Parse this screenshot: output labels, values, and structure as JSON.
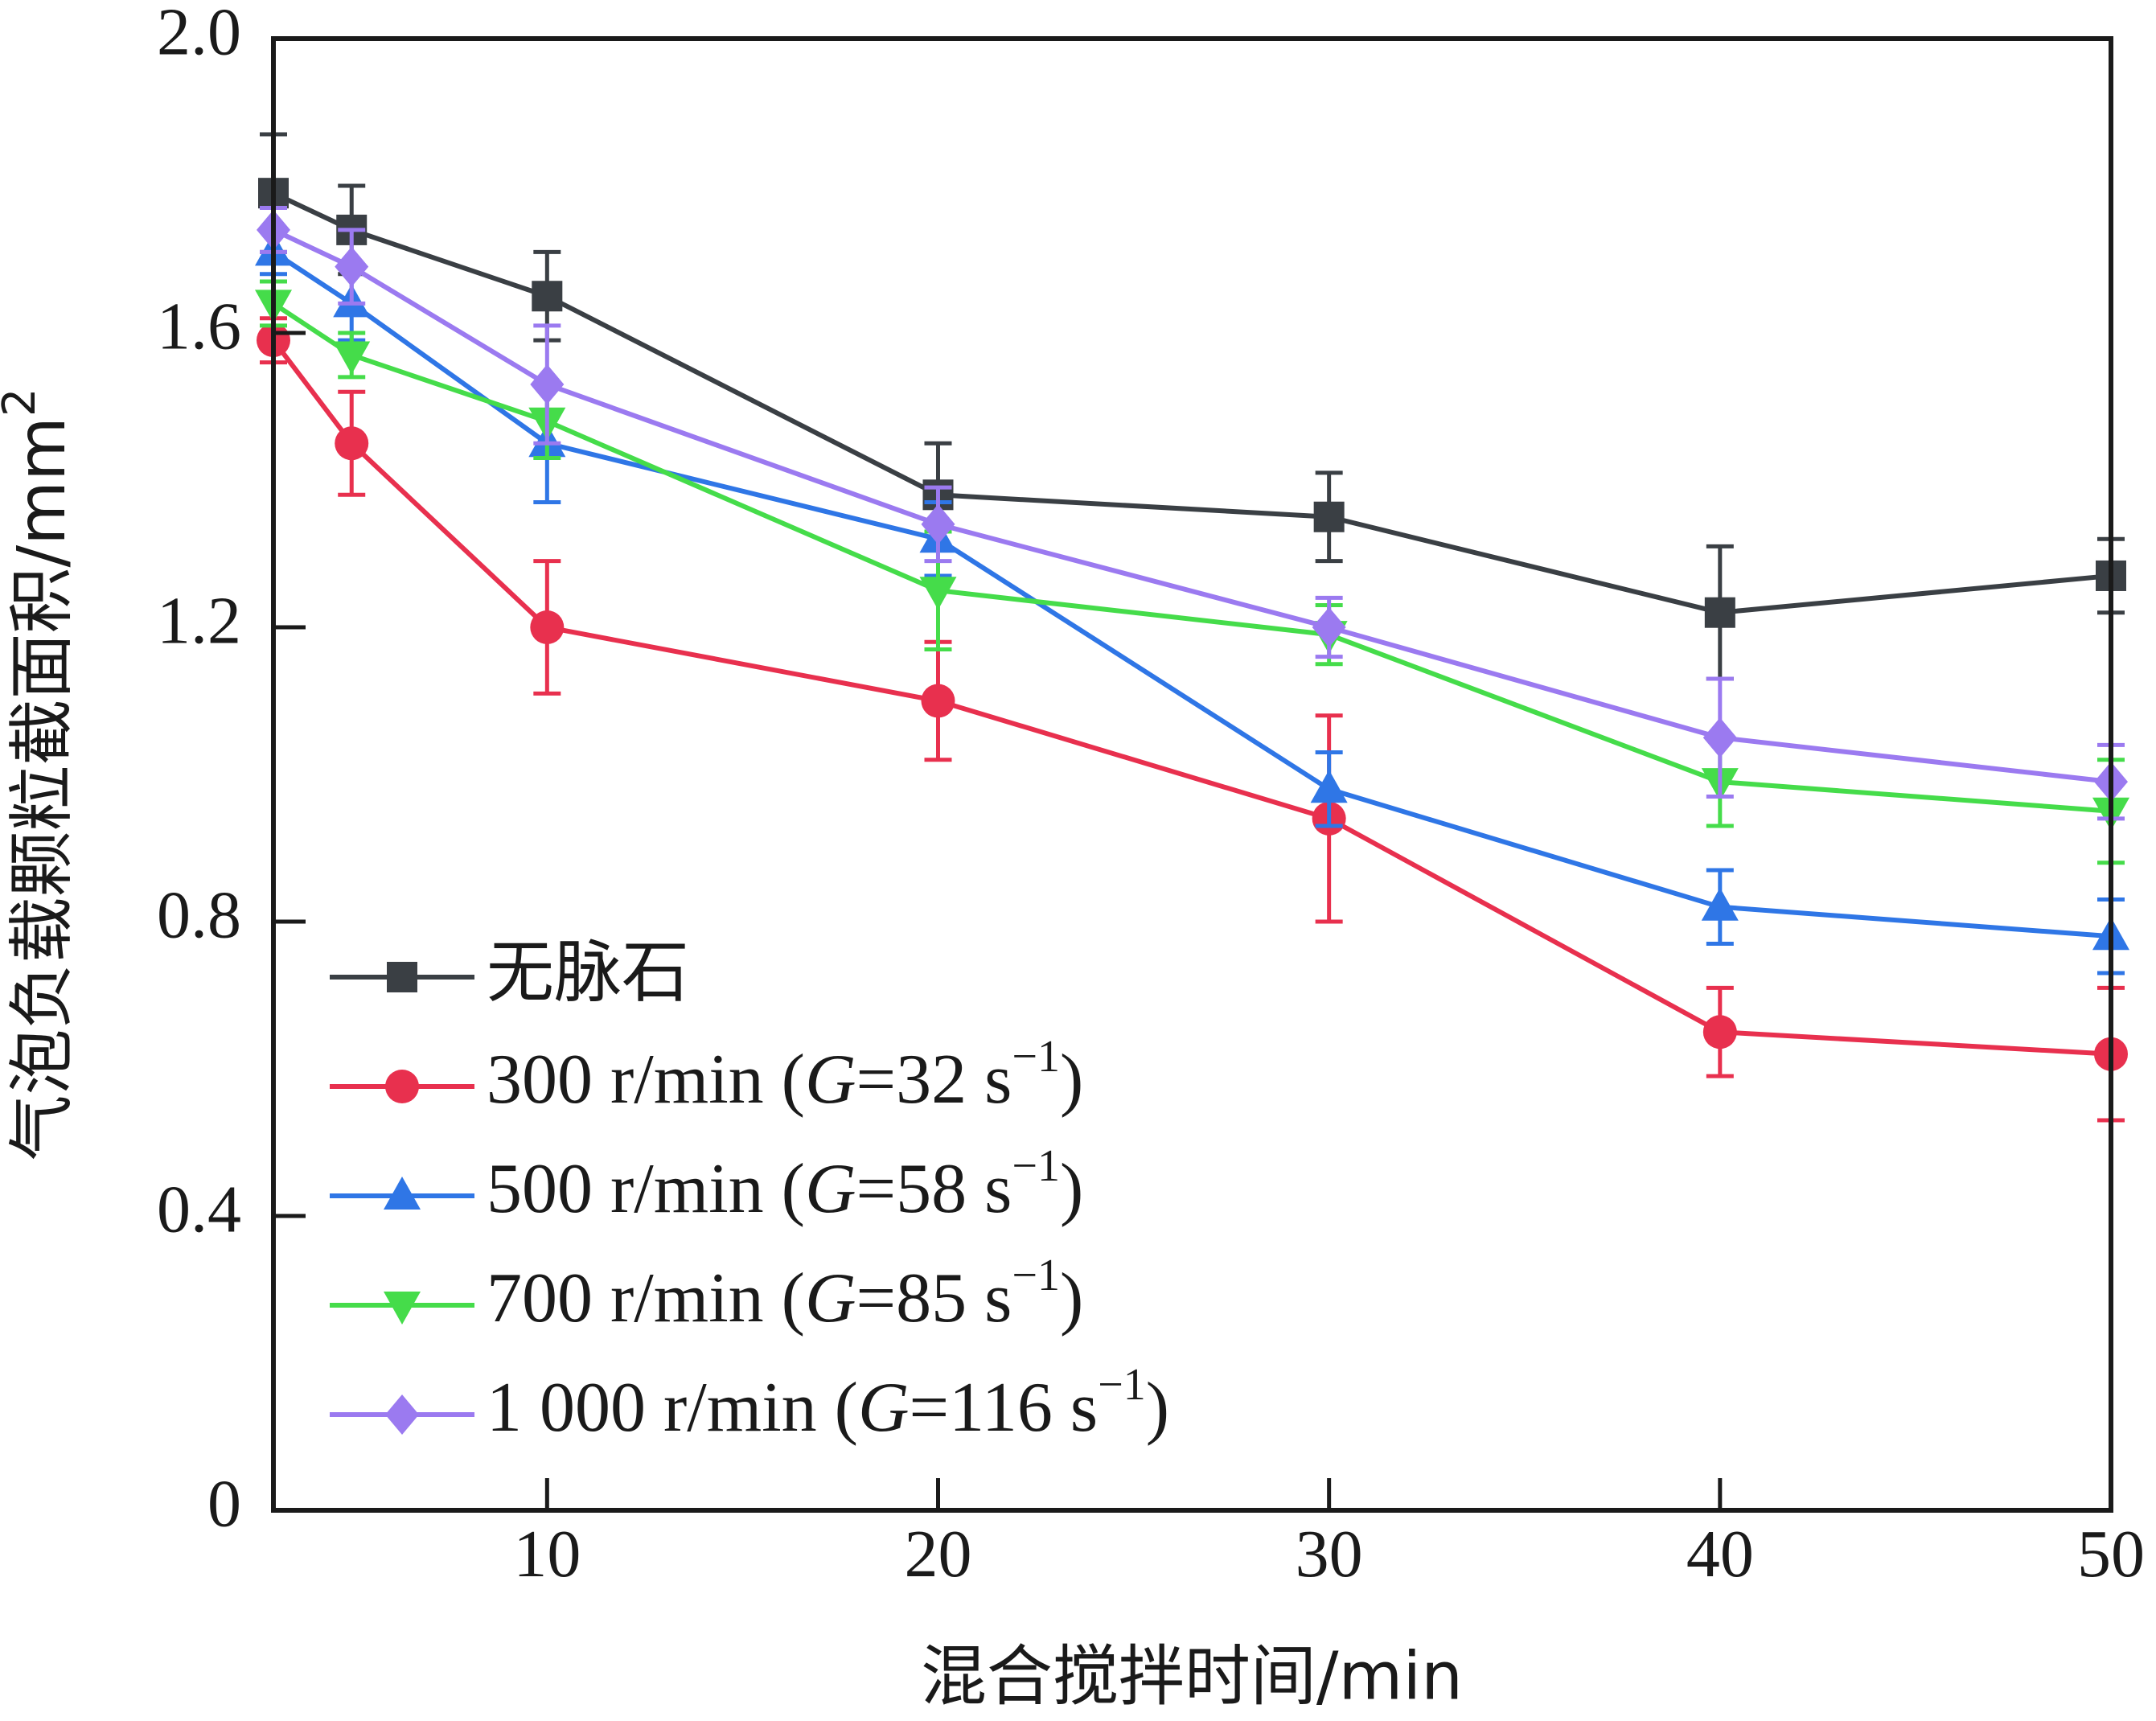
{
  "chart_data": {
    "type": "line",
    "title": "",
    "xlabel": "混合搅拌时间/min",
    "ylabel": "气泡负载颗粒截面积/mm",
    "ylabel_sup": "2",
    "xlim": [
      3,
      50
    ],
    "ylim": [
      0,
      2.0
    ],
    "xticks": [
      10,
      20,
      30,
      40,
      50
    ],
    "xtick_labels": [
      "10",
      "20",
      "30",
      "40",
      "50"
    ],
    "yticks": [
      0,
      0.4,
      0.8,
      1.2,
      1.6,
      2.0
    ],
    "ytick_labels": [
      "0",
      "0.4",
      "0.8",
      "1.2",
      "1.6",
      "2.0"
    ],
    "grid": false,
    "legend_position": "bottom-left",
    "x": [
      3,
      5,
      10,
      20,
      30,
      40,
      50
    ],
    "series": [
      {
        "name": "无脉石",
        "legend": {
          "pre": "无脉石",
          "italic": "",
          "mid": "",
          "sup": "",
          "post": ""
        },
        "color": "#3a3f44",
        "marker": "square",
        "values": [
          1.79,
          1.74,
          1.65,
          1.38,
          1.35,
          1.22,
          1.27
        ],
        "errors": [
          0.08,
          0.06,
          0.06,
          0.07,
          0.06,
          0.09,
          0.05
        ]
      },
      {
        "name": "300 r/min (G=32 s−1)",
        "legend": {
          "pre": "300 r/min (",
          "italic": "G",
          "mid": "=32 s",
          "sup": "−1",
          "post": ")"
        },
        "color": "#e8304e",
        "marker": "circle",
        "values": [
          1.59,
          1.45,
          1.2,
          1.1,
          0.94,
          0.65,
          0.62
        ],
        "errors": [
          0.03,
          0.07,
          0.09,
          0.08,
          0.14,
          0.06,
          0.09
        ]
      },
      {
        "name": "500 r/min (G=58 s−1)",
        "legend": {
          "pre": "500 r/min (",
          "italic": "G",
          "mid": "=58 s",
          "sup": "−1",
          "post": ")"
        },
        "color": "#2f76e6",
        "marker": "triangle-up",
        "values": [
          1.71,
          1.64,
          1.45,
          1.32,
          0.98,
          0.82,
          0.78
        ],
        "errors": [
          0.03,
          0.05,
          0.08,
          0.05,
          0.05,
          0.05,
          0.05
        ]
      },
      {
        "name": "700 r/min (G=85 s−1)",
        "legend": {
          "pre": "700 r/min (",
          "italic": "G",
          "mid": "=85 s",
          "sup": "−1",
          "post": ")"
        },
        "color": "#45dc4a",
        "marker": "triangle-down",
        "values": [
          1.64,
          1.57,
          1.48,
          1.25,
          1.19,
          0.99,
          0.95
        ],
        "errors": [
          0.03,
          0.03,
          0.05,
          0.08,
          0.04,
          0.06,
          0.07
        ]
      },
      {
        "name": "1 000 r/min (G=116 s−1)",
        "legend": {
          "pre": "1 000 r/min (",
          "italic": "G",
          "mid": "=116 s",
          "sup": "−1",
          "post": ")"
        },
        "color": "#9b7af0",
        "marker": "diamond",
        "values": [
          1.74,
          1.69,
          1.53,
          1.34,
          1.2,
          1.05,
          0.99
        ],
        "errors": [
          0.03,
          0.05,
          0.08,
          0.05,
          0.04,
          0.08,
          0.05
        ]
      }
    ]
  }
}
